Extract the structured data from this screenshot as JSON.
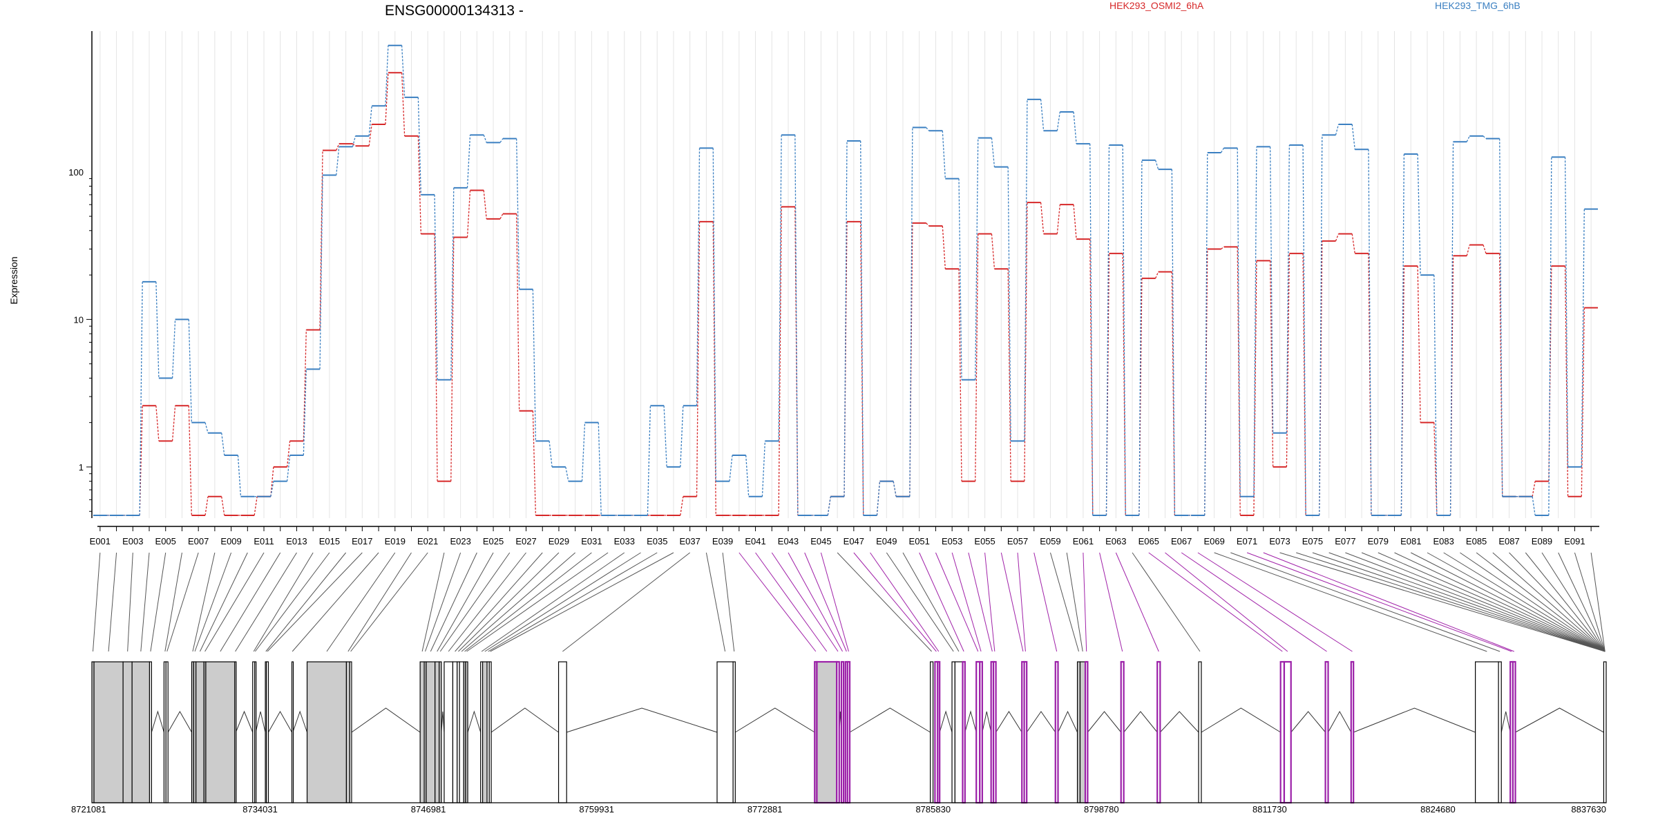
{
  "chart_data": {
    "type": "line",
    "title": "ENSG00000134313 -",
    "ylabel": "Expression",
    "yscale": "log",
    "ylim": [
      0.45,
      900
    ],
    "yticks": [
      {
        "value": 1,
        "label": "1"
      },
      {
        "value": 10,
        "label": "10"
      },
      {
        "value": 100,
        "label": "100"
      }
    ],
    "grid": "vertical, light",
    "legend_placement": "top",
    "series": [
      {
        "name": "HEK293_OSMI2_6hA",
        "color": "#d62728",
        "values": [
          0.47,
          0.47,
          0.47,
          2.6,
          1.5,
          2.6,
          0.47,
          0.63,
          0.47,
          0.47,
          0.63,
          1.0,
          1.5,
          8.5,
          140,
          155,
          150,
          210,
          470,
          175,
          38,
          0.8,
          36,
          75,
          48,
          52,
          2.4,
          0.47,
          0.47,
          0.47,
          0.47,
          0.47,
          0.47,
          0.47,
          0.47,
          0.47,
          0.63,
          46,
          0.47,
          0.47,
          0.47,
          0.47,
          58,
          0.47,
          0.47,
          0.63,
          46,
          0.47,
          0.8,
          0.63,
          45,
          43,
          22,
          0.8,
          38,
          22,
          0.8,
          62,
          38,
          60,
          35,
          0.47,
          28,
          0.47,
          19,
          21,
          0.47,
          0.47,
          30,
          31,
          0.47,
          25,
          1.0,
          28,
          0.47,
          34,
          38,
          28,
          0.47,
          0.47,
          23,
          2.0,
          0.47,
          27,
          32,
          28,
          0.63,
          0.63,
          0.8,
          23,
          0.63,
          12
        ]
      },
      {
        "name": "HEK293_TMG_6hB",
        "color": "#3a7fc1",
        "values": [
          0.47,
          0.47,
          0.47,
          18,
          4.0,
          10,
          2.0,
          1.7,
          1.2,
          0.63,
          0.63,
          0.8,
          1.2,
          4.6,
          95,
          148,
          175,
          280,
          720,
          320,
          70,
          3.9,
          78,
          178,
          158,
          168,
          16,
          1.5,
          1.0,
          0.8,
          2.0,
          0.47,
          0.47,
          0.47,
          2.6,
          1.0,
          2.6,
          145,
          0.8,
          1.2,
          0.63,
          1.5,
          178,
          0.47,
          0.47,
          0.63,
          162,
          0.47,
          0.8,
          0.63,
          200,
          190,
          90,
          3.9,
          170,
          108,
          1.5,
          310,
          190,
          255,
          155,
          0.47,
          152,
          0.47,
          120,
          104,
          0.47,
          0.47,
          135,
          145,
          0.63,
          148,
          1.7,
          152,
          0.47,
          178,
          210,
          142,
          0.47,
          0.47,
          132,
          20,
          0.47,
          160,
          175,
          168,
          0.63,
          0.63,
          0.47,
          126,
          1.0,
          56
        ]
      }
    ],
    "exon_labels": [
      "E001",
      "E003",
      "E005",
      "E007",
      "E009",
      "E011",
      "E013",
      "E015",
      "E017",
      "E019",
      "E021",
      "E023",
      "E025",
      "E027",
      "E029",
      "E031",
      "E033",
      "E035",
      "E037",
      "E039",
      "E041",
      "E043",
      "E045",
      "E047",
      "E049",
      "E051",
      "E053",
      "E055",
      "E057",
      "E059",
      "E061",
      "E063",
      "E065",
      "E067",
      "E069",
      "E071",
      "E073",
      "E075",
      "E077",
      "E079",
      "E081",
      "E083",
      "E085",
      "E087",
      "E089",
      "E091"
    ],
    "genome_axis": {
      "range": [
        8721081,
        8837630
      ],
      "ticks": [
        "8721081",
        "8734031",
        "8746981",
        "8759931",
        "8772881",
        "8785830",
        "8798780",
        "8811730",
        "8824680",
        "8837630"
      ]
    },
    "gene_model": {
      "exons": [
        {
          "start": 8721081,
          "end": 8721243,
          "fill": "#cccccc",
          "outline": "#000000"
        },
        {
          "start": 8721243,
          "end": 8723481,
          "fill": "#cccccc",
          "outline": "#000000"
        },
        {
          "start": 8723481,
          "end": 8724174,
          "fill": "#cccccc",
          "outline": "#000000"
        },
        {
          "start": 8724174,
          "end": 8725520,
          "fill": "#cccccc",
          "outline": "#000000"
        },
        {
          "start": 8725520,
          "end": 8725673,
          "fill": "#ffffff",
          "outline": "#000000"
        },
        {
          "start": 8726633,
          "end": 8726785,
          "fill": "#ffffff",
          "outline": "#000000"
        },
        {
          "start": 8726785,
          "end": 8726940,
          "fill": "#ffffff",
          "outline": "#000000"
        },
        {
          "start": 8728765,
          "end": 8728920,
          "fill": "#cccccc",
          "outline": "#000000"
        },
        {
          "start": 8728920,
          "end": 8729092,
          "fill": "#cccccc",
          "outline": "#000000"
        },
        {
          "start": 8729092,
          "end": 8729710,
          "fill": "#cccccc",
          "outline": "#000000"
        },
        {
          "start": 8729710,
          "end": 8729849,
          "fill": "#cccccc",
          "outline": "#000000"
        },
        {
          "start": 8729849,
          "end": 8732080,
          "fill": "#cccccc",
          "outline": "#000000"
        },
        {
          "start": 8732080,
          "end": 8732158,
          "fill": "#ffffff",
          "outline": "#000000"
        },
        {
          "start": 8733457,
          "end": 8733611,
          "fill": "#ffffff",
          "outline": "#000000"
        },
        {
          "start": 8733611,
          "end": 8733688,
          "fill": "#ffffff",
          "outline": "#000000"
        },
        {
          "start": 8734431,
          "end": 8734511,
          "fill": "#ffffff",
          "outline": "#000000"
        },
        {
          "start": 8734511,
          "end": 8734665,
          "fill": "#ffffff",
          "outline": "#000000"
        },
        {
          "start": 8736475,
          "end": 8736545,
          "fill": "#ffffff",
          "outline": "#000000"
        },
        {
          "start": 8737645,
          "end": 8740670,
          "fill": "#cccccc",
          "outline": "#000000"
        },
        {
          "start": 8740670,
          "end": 8740930,
          "fill": "#cccccc",
          "outline": "#000000"
        },
        {
          "start": 8740930,
          "end": 8741070,
          "fill": "#ffffff",
          "outline": "#000000"
        },
        {
          "start": 8746345,
          "end": 8746660,
          "fill": "#cccccc",
          "outline": "#000000"
        },
        {
          "start": 8746660,
          "end": 8746810,
          "fill": "#cccccc",
          "outline": "#000000"
        },
        {
          "start": 8746810,
          "end": 8747490,
          "fill": "#cccccc",
          "outline": "#000000"
        },
        {
          "start": 8747490,
          "end": 8747810,
          "fill": "#cccccc",
          "outline": "#000000"
        },
        {
          "start": 8747810,
          "end": 8747980,
          "fill": "#cccccc",
          "outline": "#000000"
        },
        {
          "start": 8748195,
          "end": 8748860,
          "fill": "#ffffff",
          "outline": "#000000"
        },
        {
          "start": 8748860,
          "end": 8749195,
          "fill": "#ffffff",
          "outline": "#000000"
        },
        {
          "start": 8749195,
          "end": 8749375,
          "fill": "#ffffff",
          "outline": "#000000"
        },
        {
          "start": 8749375,
          "end": 8749695,
          "fill": "#ffffff",
          "outline": "#000000"
        },
        {
          "start": 8749695,
          "end": 8749843,
          "fill": "#cccccc",
          "outline": "#000000"
        },
        {
          "start": 8749843,
          "end": 8750009,
          "fill": "#cccccc",
          "outline": "#000000"
        },
        {
          "start": 8751000,
          "end": 8751153,
          "fill": "#ffffff",
          "outline": "#000000"
        },
        {
          "start": 8751153,
          "end": 8751497,
          "fill": "#cccccc",
          "outline": "#000000"
        },
        {
          "start": 8751497,
          "end": 8751666,
          "fill": "#ffffff",
          "outline": "#000000"
        },
        {
          "start": 8751666,
          "end": 8751818,
          "fill": "#ffffff",
          "outline": "#000000"
        },
        {
          "start": 8757000,
          "end": 8757620,
          "fill": "#ffffff",
          "outline": "#000000"
        },
        {
          "start": 8769200,
          "end": 8770430,
          "fill": "#ffffff",
          "outline": "#000000"
        },
        {
          "start": 8770430,
          "end": 8770600,
          "fill": "#ffffff",
          "outline": "#000000"
        },
        {
          "start": 8776710,
          "end": 8776880,
          "fill": "#cccccc",
          "outline": "#9b1fa8"
        },
        {
          "start": 8776880,
          "end": 8778410,
          "fill": "#cccccc",
          "outline": "#9b1fa8"
        },
        {
          "start": 8778410,
          "end": 8778600,
          "fill": "#ffffff",
          "outline": "#9b1fa8"
        },
        {
          "start": 8778770,
          "end": 8778935,
          "fill": "#ffffff",
          "outline": "#9b1fa8"
        },
        {
          "start": 8779080,
          "end": 8779240,
          "fill": "#ffffff",
          "outline": "#9b1fa8"
        },
        {
          "start": 8779240,
          "end": 8779410,
          "fill": "#ffffff",
          "outline": "#9b1fa8"
        },
        {
          "start": 8785610,
          "end": 8785820,
          "fill": "#ffffff",
          "outline": "#000000"
        },
        {
          "start": 8785970,
          "end": 8786180,
          "fill": "#ffffff",
          "outline": "#9b1fa8"
        },
        {
          "start": 8786180,
          "end": 8786330,
          "fill": "#ffffff",
          "outline": "#9b1fa8"
        },
        {
          "start": 8787280,
          "end": 8787510,
          "fill": "#ffffff",
          "outline": "#000000"
        },
        {
          "start": 8787510,
          "end": 8788100,
          "fill": "#ffffff",
          "outline": "#000000"
        },
        {
          "start": 8788100,
          "end": 8788280,
          "fill": "#ffffff",
          "outline": "#9b1fa8"
        },
        {
          "start": 8789150,
          "end": 8789420,
          "fill": "#ffffff",
          "outline": "#9b1fa8"
        },
        {
          "start": 8789420,
          "end": 8789610,
          "fill": "#ffffff",
          "outline": "#9b1fa8"
        },
        {
          "start": 8790290,
          "end": 8790470,
          "fill": "#ffffff",
          "outline": "#9b1fa8"
        },
        {
          "start": 8790470,
          "end": 8790660,
          "fill": "#ffffff",
          "outline": "#9b1fa8"
        },
        {
          "start": 8792660,
          "end": 8792840,
          "fill": "#ffffff",
          "outline": "#9b1fa8"
        },
        {
          "start": 8792840,
          "end": 8793030,
          "fill": "#ffffff",
          "outline": "#9b1fa8"
        },
        {
          "start": 8795240,
          "end": 8795440,
          "fill": "#ffffff",
          "outline": "#9b1fa8"
        },
        {
          "start": 8796930,
          "end": 8797140,
          "fill": "#cccccc",
          "outline": "#000000"
        },
        {
          "start": 8797140,
          "end": 8797540,
          "fill": "#cccccc",
          "outline": "#000000"
        },
        {
          "start": 8797540,
          "end": 8797720,
          "fill": "#ffffff",
          "outline": "#9b1fa8"
        },
        {
          "start": 8800290,
          "end": 8800500,
          "fill": "#ffffff",
          "outline": "#9b1fa8"
        },
        {
          "start": 8803080,
          "end": 8803300,
          "fill": "#ffffff",
          "outline": "#9b1fa8"
        },
        {
          "start": 8806260,
          "end": 8806470,
          "fill": "#ffffff",
          "outline": "#000000"
        },
        {
          "start": 8812570,
          "end": 8812850,
          "fill": "#ffffff",
          "outline": "#9b1fa8"
        },
        {
          "start": 8812850,
          "end": 8813370,
          "fill": "#ffffff",
          "outline": "#9b1fa8"
        },
        {
          "start": 8816020,
          "end": 8816230,
          "fill": "#ffffff",
          "outline": "#9b1fa8"
        },
        {
          "start": 8818000,
          "end": 8818180,
          "fill": "#ffffff",
          "outline": "#9b1fa8"
        },
        {
          "start": 8827560,
          "end": 8829340,
          "fill": "#ffffff",
          "outline": "#000000"
        },
        {
          "start": 8829340,
          "end": 8829560,
          "fill": "#ffffff",
          "outline": "#000000"
        },
        {
          "start": 8830250,
          "end": 8830450,
          "fill": "#ffffff",
          "outline": "#9b1fa8"
        },
        {
          "start": 8830450,
          "end": 8830640,
          "fill": "#ffffff",
          "outline": "#9b1fa8"
        },
        {
          "start": 8837440,
          "end": 8837630,
          "fill": "#ffffff",
          "outline": "#000000"
        }
      ],
      "connector_colors": [
        "#555555",
        "#a020a8"
      ]
    }
  }
}
